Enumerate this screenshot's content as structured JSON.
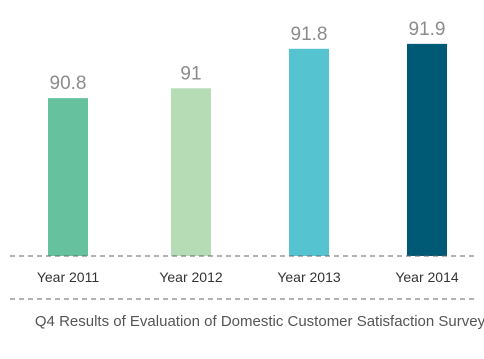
{
  "chart_data": {
    "type": "bar",
    "categories": [
      "Year 2011",
      "Year 2012",
      "Year 2013",
      "Year 2014"
    ],
    "values": [
      90.8,
      91,
      91.8,
      91.9
    ],
    "value_labels": [
      "90.8",
      "91",
      "91.8",
      "91.9"
    ],
    "bar_colors": [
      "#66c29e",
      "#b6dcb6",
      "#56c3d0",
      "#005a76"
    ],
    "title": "Q4 Results of Evaluation of Domestic Customer Satisfaction Survey",
    "xlabel": "",
    "ylabel": "",
    "ylim": [
      87.6,
      92.1
    ],
    "grid": false,
    "legend": "none"
  }
}
